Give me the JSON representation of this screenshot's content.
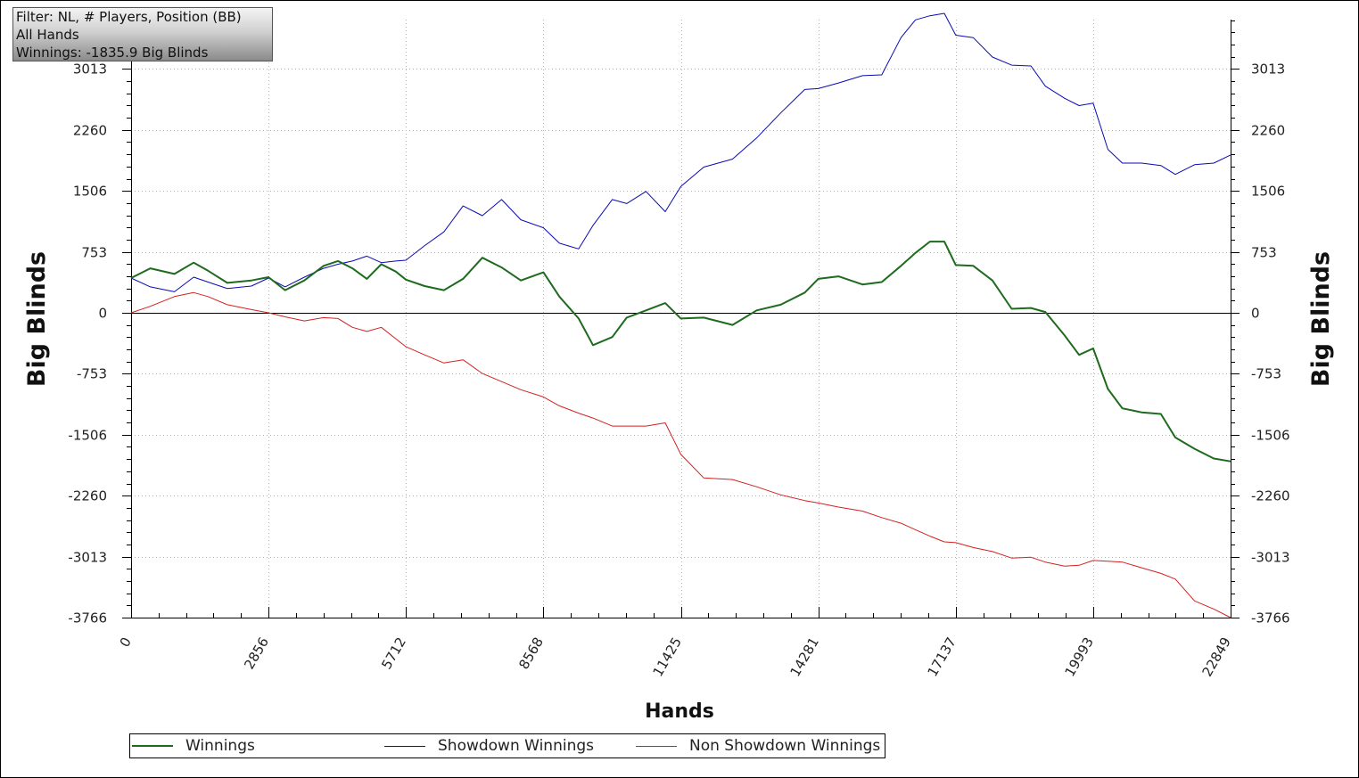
{
  "info_box": {
    "line1": "Filter: NL, # Players, Position (BB)",
    "line2": "All Hands",
    "line3": "Winnings: -1835.9 Big Blinds"
  },
  "colors": {
    "winnings": "#1e6b1e",
    "showdown": "#0a0ab4",
    "non_showdown": "#d42020",
    "grid": "#b4b4b4",
    "axis": "#000000"
  },
  "chart_data": {
    "type": "line",
    "xlabel": "Hands",
    "ylabel": "Big Blinds",
    "ylabel_right": "Big Blinds",
    "xlim": [
      0,
      22849
    ],
    "ylim": [
      -3766,
      3700
    ],
    "x_ticks": [
      0,
      2856,
      5712,
      8568,
      11425,
      14281,
      17137,
      19993,
      22849
    ],
    "x_tick_labels": [
      "0",
      "2856",
      "5712",
      "8568",
      "11425",
      "14281",
      "17137",
      "19993",
      "22849"
    ],
    "y_ticks": [
      3013,
      2260,
      1506,
      753,
      0,
      -753,
      -1506,
      -2260,
      -3013,
      -3766
    ],
    "y_tick_labels": [
      "3013",
      "2260",
      "1506",
      "753",
      "0",
      "-753",
      "-1506",
      "-2260",
      "-3013",
      "-3766"
    ],
    "grid": true,
    "legend_position": "bottom",
    "x": [
      0,
      400,
      900,
      1300,
      1600,
      2000,
      2500,
      2856,
      3200,
      3600,
      4000,
      4300,
      4600,
      4900,
      5200,
      5500,
      5712,
      6100,
      6500,
      6900,
      7300,
      7700,
      8100,
      8568,
      8900,
      9300,
      9600,
      10000,
      10300,
      10700,
      11100,
      11425,
      11900,
      12500,
      13000,
      13500,
      14000,
      14281,
      14700,
      15200,
      15600,
      16000,
      16300,
      16600,
      16900,
      17137,
      17500,
      17900,
      18300,
      18700,
      19000,
      19400,
      19700,
      19993,
      20300,
      20600,
      21000,
      21400,
      21700,
      22100,
      22500,
      22849
    ],
    "series": [
      {
        "name": "Winnings",
        "values": [
          430,
          550,
          480,
          620,
          520,
          370,
          400,
          440,
          280,
          400,
          580,
          640,
          550,
          420,
          600,
          510,
          410,
          330,
          280,
          420,
          680,
          560,
          400,
          500,
          200,
          -70,
          -400,
          -300,
          -60,
          30,
          120,
          -70,
          -60,
          -150,
          30,
          100,
          250,
          420,
          450,
          350,
          380,
          580,
          740,
          880,
          880,
          590,
          580,
          400,
          50,
          60,
          10,
          -280,
          -520,
          -440,
          -940,
          -1180,
          -1230,
          -1250,
          -1540,
          -1680,
          -1800,
          -1836
        ]
      },
      {
        "name": "Showdown Winnings",
        "values": [
          430,
          320,
          260,
          440,
          380,
          300,
          330,
          430,
          320,
          440,
          550,
          600,
          640,
          700,
          620,
          640,
          650,
          830,
          1000,
          1320,
          1200,
          1400,
          1150,
          1050,
          860,
          790,
          1080,
          1400,
          1350,
          1500,
          1250,
          1560,
          1800,
          1900,
          2160,
          2470,
          2760,
          2770,
          2840,
          2930,
          2940,
          3400,
          3620,
          3670,
          3700,
          3430,
          3400,
          3160,
          3060,
          3050,
          2800,
          2650,
          2560,
          2590,
          2020,
          1850,
          1850,
          1820,
          1710,
          1830,
          1850,
          1950
        ]
      },
      {
        "name": "Non Showdown Winnings",
        "values": [
          0,
          80,
          200,
          250,
          200,
          100,
          40,
          0,
          -50,
          -100,
          -60,
          -70,
          -180,
          -230,
          -180,
          -320,
          -420,
          -520,
          -620,
          -580,
          -750,
          -850,
          -950,
          -1040,
          -1150,
          -1240,
          -1300,
          -1400,
          -1400,
          -1400,
          -1360,
          -1750,
          -2040,
          -2060,
          -2150,
          -2250,
          -2320,
          -2350,
          -2400,
          -2450,
          -2530,
          -2600,
          -2680,
          -2760,
          -2830,
          -2840,
          -2900,
          -2950,
          -3030,
          -3020,
          -3080,
          -3130,
          -3120,
          -3060,
          -3070,
          -3080,
          -3150,
          -3220,
          -3290,
          -3560,
          -3660,
          -3766
        ]
      }
    ]
  }
}
